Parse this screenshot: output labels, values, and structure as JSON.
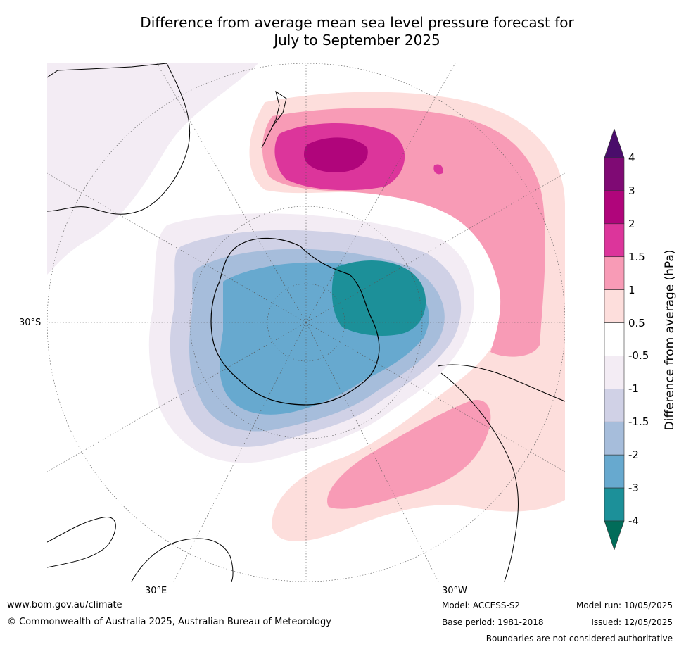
{
  "title": {
    "line1": "Difference from average mean sea level pressure forecast for",
    "line2": "July to September 2025"
  },
  "map": {
    "projection": "south-polar stereographic",
    "labels": {
      "lat": "30°S",
      "lon_e": "30°E",
      "lon_w": "30°W"
    },
    "features": [
      "positive-anomaly-band-south-of-australia-nz",
      "negative-anomaly-over-antarctica",
      "positive-anomaly-south-atlantic-south-america"
    ]
  },
  "colorbar": {
    "label": "Difference from average (hPa)",
    "ticks": [
      "4",
      "3",
      "2",
      "1.5",
      "1",
      "0.5",
      "-0.5",
      "-1",
      "-1.5",
      "-2",
      "-3",
      "-4"
    ],
    "colors_top_to_bottom": [
      "#4a0d6b",
      "#7f0a74",
      "#b0057b",
      "#dc359b",
      "#f89bb6",
      "#fddedc",
      "#ffffff",
      "#f3ecf4",
      "#d0d1e6",
      "#a6bddb",
      "#67a9cf",
      "#1c9099",
      "#016c59"
    ]
  },
  "footer": {
    "website": "www.bom.gov.au/climate",
    "copyright": "© Commonwealth of Australia 2025, Australian Bureau of Meteorology",
    "model": "Model: ACCESS-S2",
    "base_period": "Base period: 1981-2018",
    "model_run": "Model run: 10/05/2025",
    "issued": "Issued: 12/05/2025",
    "disclaimer": "Boundaries are not considered authoritative"
  }
}
